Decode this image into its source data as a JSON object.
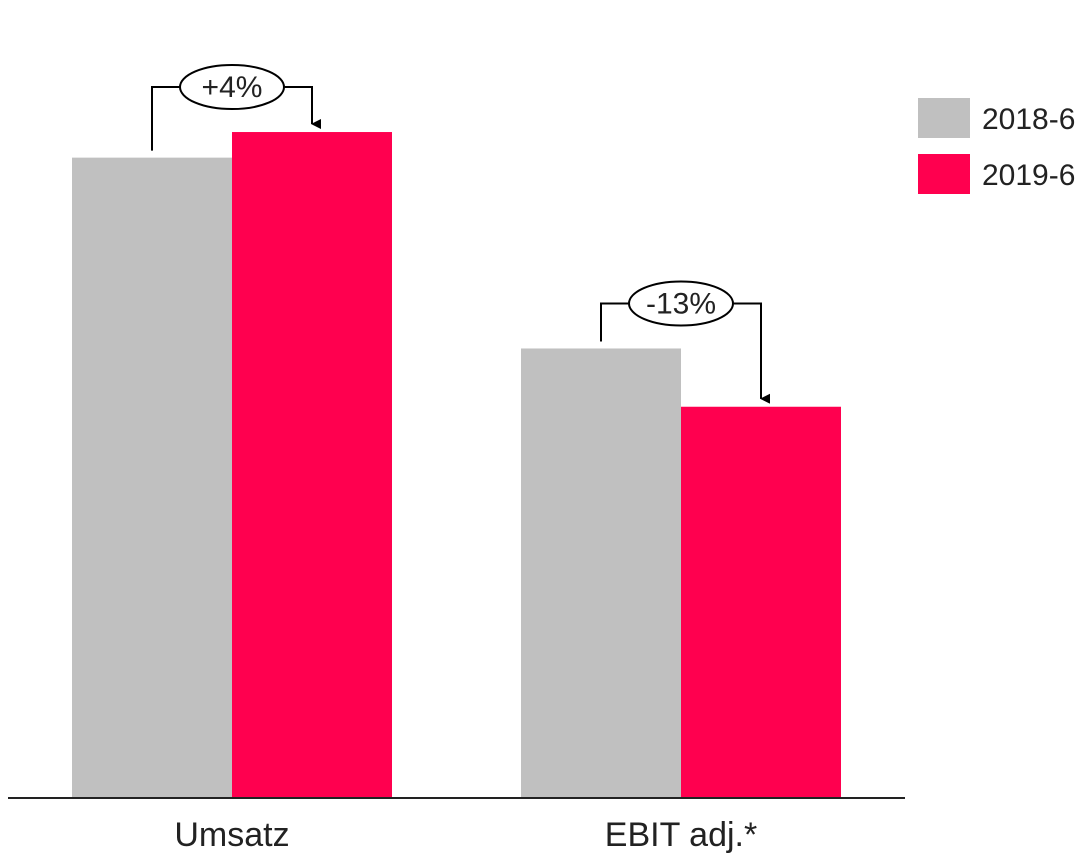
{
  "chart_data": {
    "type": "bar",
    "categories": [
      "Umsatz",
      "EBIT adj.*"
    ],
    "series": [
      {
        "name": "2018-6",
        "values": [
          100,
          70.2
        ],
        "color": "#c0c0c0"
      },
      {
        "name": "2019-6",
        "values": [
          104,
          61.1
        ],
        "color": "#ff004f"
      }
    ],
    "changes": [
      "+4%",
      "-13%"
    ],
    "legend_position": "right",
    "ylim": [
      0,
      114
    ],
    "grid": false
  }
}
